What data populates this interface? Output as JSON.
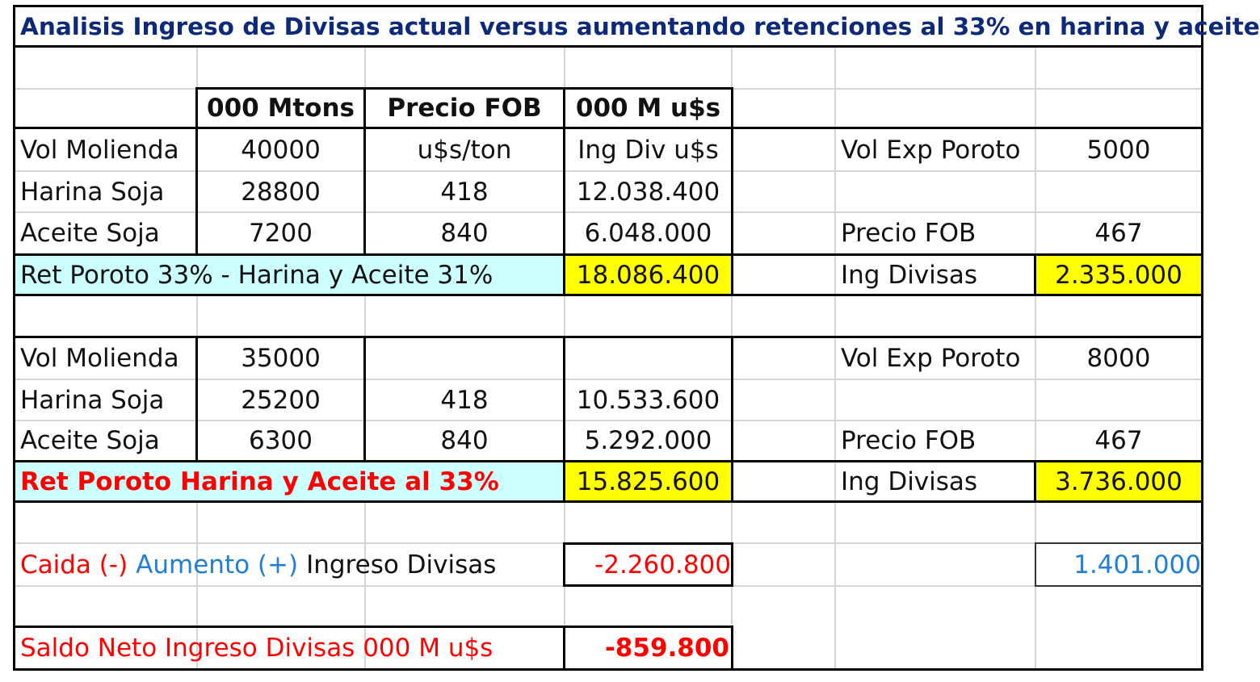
{
  "title": "Analisis Ingreso de Divisas actual versus aumentando retenciones al 33% en harina y aceite",
  "header": {
    "col1": "000 Mtons",
    "col2": "Precio FOB",
    "col3": "000 M u$s"
  },
  "scenario_actual": {
    "vol_label": "Vol Molienda",
    "vol": "40000",
    "unit_price": "u$s/ton",
    "unit_ing": "Ing Div u$s",
    "harina_label": "Harina Soja",
    "harina_vol": "28800",
    "harina_price": "418",
    "harina_ing": "12.038.400",
    "aceite_label": "Aceite Soja",
    "aceite_vol": "7200",
    "aceite_price": "840",
    "aceite_ing": "6.048.000",
    "total_label": "Ret Poroto 33% - Harina y Aceite 31%",
    "total": "18.086.400",
    "poroto_vol_label": "Vol Exp Poroto",
    "poroto_vol": "5000",
    "poroto_price_label": "Precio FOB",
    "poroto_price": "467",
    "poroto_ing_label": "Ing Divisas",
    "poroto_ing": "2.335.000"
  },
  "scenario_33": {
    "vol_label": "Vol Molienda",
    "vol": "35000",
    "harina_label": "Harina Soja",
    "harina_vol": "25200",
    "harina_price": "418",
    "harina_ing": "10.533.600",
    "aceite_label": "Aceite Soja",
    "aceite_vol": "6300",
    "aceite_price": "840",
    "aceite_ing": "5.292.000",
    "total_label": "Ret Poroto Harina y Aceite al 33%",
    "total": "15.825.600",
    "poroto_vol_label": "Vol Exp Poroto",
    "poroto_vol": "8000",
    "poroto_price_label": "Precio FOB",
    "poroto_price": "467",
    "poroto_ing_label": "Ing Divisas",
    "poroto_ing": "3.736.000"
  },
  "diff": {
    "label_caida": "Caida (-)",
    "label_aumento": "Aumento (+)",
    "label_rest": "Ingreso Divisas",
    "value": "-2.260.800",
    "poroto_value": "1.401.000"
  },
  "saldo": {
    "label": "Saldo Neto  Ingreso Divisas 000 M u$s",
    "value": "-859.800"
  },
  "colors": {
    "yellow": "#ffff00",
    "cyan": "#ccffff",
    "red": "#ff0000",
    "blue": "#1f7fd6",
    "title_navy": "#0d2a78"
  }
}
